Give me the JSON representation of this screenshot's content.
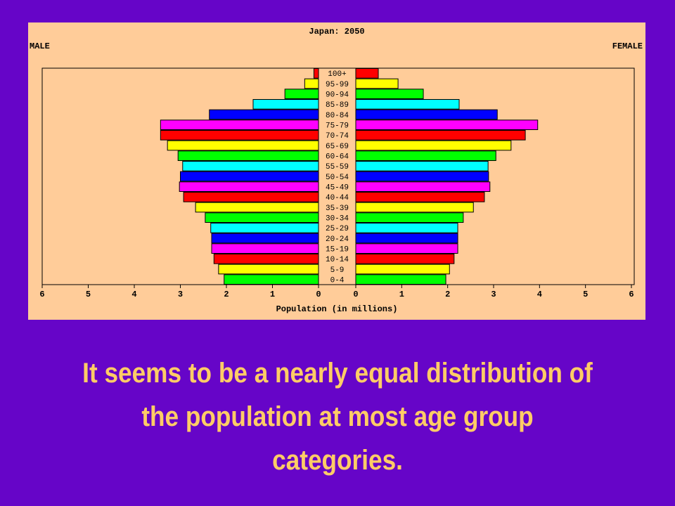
{
  "chart_data": {
    "type": "pyramid",
    "title": "Japan: 2050",
    "x_label": "Population (in millions)",
    "categories": [
      "0-4",
      "5-9",
      "10-14",
      "15-19",
      "20-24",
      "25-29",
      "30-34",
      "35-39",
      "40-44",
      "45-49",
      "50-54",
      "55-59",
      "60-64",
      "65-69",
      "70-74",
      "75-79",
      "80-84",
      "85-89",
      "90-94",
      "95-99",
      "100+"
    ],
    "colors": [
      "#00ff00",
      "#ffff00",
      "#ff0000",
      "#ff00ff",
      "#0000ff",
      "#00ffff",
      "#00ff00",
      "#ffff00",
      "#ff0000",
      "#ff00ff",
      "#0000ff",
      "#00ffff",
      "#00ff00",
      "#ffff00",
      "#ff0000",
      "#ff00ff",
      "#0000ff",
      "#00ffff",
      "#00ff00",
      "#ffff00",
      "#ff0000"
    ],
    "series": [
      {
        "name": "MALE",
        "values": [
          2.05,
          2.17,
          2.27,
          2.32,
          2.32,
          2.34,
          2.46,
          2.67,
          2.93,
          3.02,
          3.0,
          2.95,
          3.05,
          3.28,
          3.43,
          3.43,
          2.37,
          1.42,
          0.73,
          0.3,
          0.1
        ]
      },
      {
        "name": "FEMALE",
        "values": [
          1.96,
          2.04,
          2.14,
          2.22,
          2.22,
          2.22,
          2.34,
          2.56,
          2.8,
          2.92,
          2.89,
          2.88,
          3.05,
          3.38,
          3.69,
          3.96,
          3.08,
          2.25,
          1.47,
          0.92,
          0.49
        ]
      }
    ],
    "xlim": [
      0,
      6
    ],
    "xticks": [
      0,
      1,
      2,
      3,
      4,
      5,
      6
    ]
  },
  "caption": "It seems to be a nearly equal distribution of the population at most age group categories."
}
